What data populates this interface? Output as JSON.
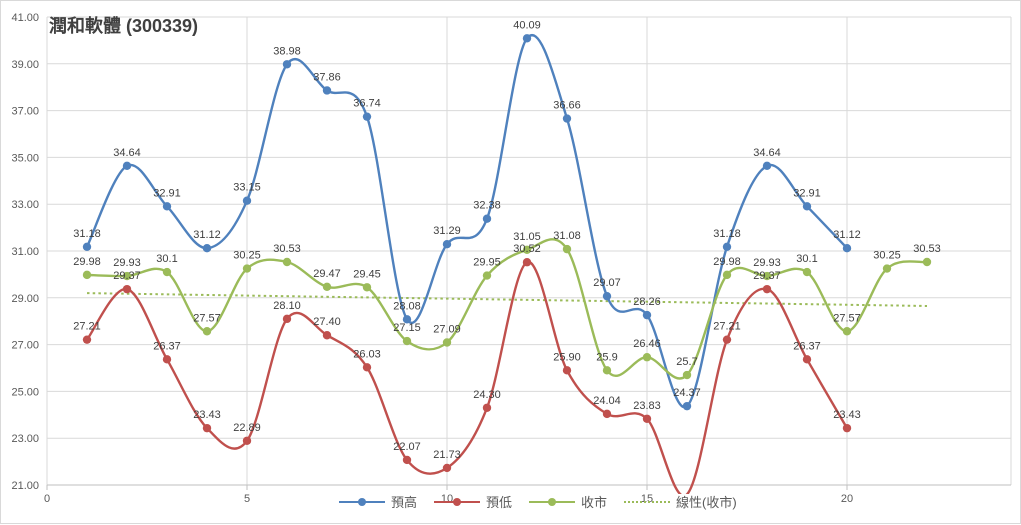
{
  "chart_data": {
    "type": "line",
    "title": "潤和軟體 (300339)",
    "x_start": 1,
    "series": [
      {
        "name": "預高",
        "color": "#4f81bd",
        "values": [
          31.18,
          34.64,
          32.91,
          31.12,
          33.15,
          38.98,
          37.86,
          36.74,
          28.08,
          31.29,
          32.38,
          40.09,
          36.66,
          29.07,
          28.26,
          24.37,
          31.18,
          34.64,
          32.91,
          31.12
        ],
        "labels": [
          "31.18",
          "34.64",
          "32.91",
          "31.12",
          "33.15",
          "38.98",
          "37.86",
          "36.74",
          "28.08",
          "31.29",
          "32.38",
          "40.09",
          "36.66",
          "29.07",
          "28.26",
          "24.37",
          "31.18",
          "34.64",
          "32.91",
          "31.12"
        ]
      },
      {
        "name": "預低",
        "color": "#c0504d",
        "values": [
          27.21,
          29.37,
          26.37,
          23.43,
          22.89,
          28.1,
          27.4,
          26.03,
          22.07,
          21.73,
          24.3,
          30.52,
          25.9,
          24.04,
          23.83,
          20.6,
          27.21,
          29.37,
          26.37,
          23.43
        ],
        "labels": [
          "27.21",
          "29.37",
          "26.37",
          "23.43",
          "22.89",
          "28.10",
          "27.40",
          "26.03",
          "22.07",
          "21.73",
          "24.30",
          "30.52",
          "25.90",
          "24.04",
          "23.83",
          "",
          "27.21",
          "29.37",
          "26.37",
          "23.43"
        ]
      },
      {
        "name": "收市",
        "color": "#9bbb59",
        "values": [
          29.98,
          29.93,
          30.1,
          27.57,
          30.25,
          30.53,
          29.47,
          29.45,
          27.15,
          27.09,
          29.95,
          31.05,
          31.08,
          25.9,
          26.46,
          25.7,
          29.98,
          29.93,
          30.1,
          27.57,
          30.25,
          30.53
        ],
        "labels": [
          "29.98",
          "29.93",
          "30.1",
          "27.57",
          "30.25",
          "30.53",
          "29.47",
          "29.45",
          "27.15",
          "27.09",
          "29.95",
          "31.05",
          "31.08",
          "25.9",
          "26.46",
          "25.7",
          "29.98",
          "29.93",
          "30.1",
          "27.57",
          "30.25",
          "30.53"
        ]
      }
    ],
    "trendline": {
      "name": "線性(收市)",
      "color": "#9bbb59",
      "style": "dotted",
      "start_x": 1,
      "start_value": 29.2,
      "end_x": 22,
      "end_value": 28.65
    },
    "ylim": [
      21,
      41
    ],
    "y_tick_step": 2,
    "y_ticks": [
      "41.00",
      "39.00",
      "37.00",
      "35.00",
      "33.00",
      "31.00",
      "29.00",
      "27.00",
      "25.00",
      "23.00",
      "21.00"
    ],
    "x_ticks": [
      "0",
      "5",
      "10",
      "15",
      "20"
    ],
    "x_tick_values": [
      0,
      5,
      10,
      15,
      20
    ],
    "grid": true,
    "legend_position": "bottom",
    "colors": {
      "gridline": "#d9d9d9",
      "axis_line": "#bfbfbf",
      "axis_text": "#595959",
      "data_label": "#3f3f3f",
      "title_text": "#404040"
    }
  }
}
